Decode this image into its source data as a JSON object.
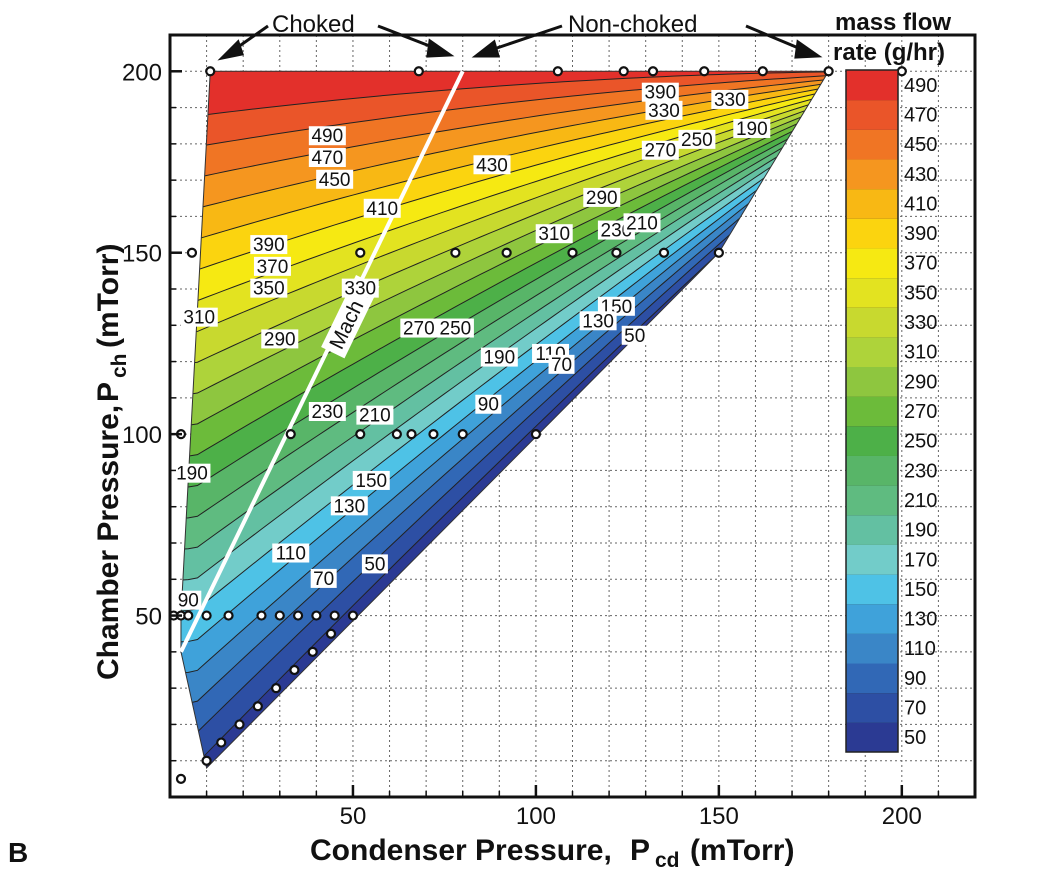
{
  "panel_label": "B",
  "chart_data": {
    "type": "contour",
    "title": "",
    "xlabel": "Condenser Pressure,",
    "xlabel_symbol": "P",
    "xlabel_sub": "cd",
    "xlabel_unit": "(mTorr)",
    "ylabel": "Chamber Pressure,",
    "ylabel_symbol": "P",
    "ylabel_sub": "ch",
    "ylabel_unit": "(mTorr)",
    "xlim": [
      0,
      220
    ],
    "ylim": [
      0,
      210
    ],
    "x_ticks": [
      50,
      100,
      150,
      200
    ],
    "y_ticks": [
      50,
      100,
      150,
      200
    ],
    "grid": true,
    "colorbar_title_line1": "mass flow",
    "colorbar_title_line2": "rate (g/hr)",
    "colorbar_levels": [
      50,
      70,
      90,
      110,
      130,
      150,
      170,
      190,
      210,
      230,
      250,
      270,
      290,
      310,
      330,
      350,
      370,
      390,
      410,
      430,
      450,
      470,
      490
    ],
    "colorbar_colors": [
      "#2b3a93",
      "#2d4fa4",
      "#3168b6",
      "#3a86c7",
      "#3fa2da",
      "#4ec2e6",
      "#72ccc9",
      "#63c0a2",
      "#5fbb80",
      "#58b568",
      "#4db048",
      "#6cbb3a",
      "#8ec63f",
      "#aed33a",
      "#c8d92f",
      "#e3e320",
      "#f6e912",
      "#fbd40f",
      "#f8b814",
      "#f5961f",
      "#f07524",
      "#ea5529",
      "#e3302b"
    ],
    "domain_boundary": [
      [
        11,
        200
      ],
      [
        180,
        200
      ],
      [
        150,
        150
      ],
      [
        10,
        8
      ],
      [
        3,
        40
      ],
      [
        3,
        50
      ],
      [
        11,
        200
      ]
    ],
    "mach1_line": {
      "label": "Mach 1",
      "x": [
        3,
        80
      ],
      "y": [
        40,
        200
      ]
    },
    "annotations": {
      "choked": "Choked",
      "non_choked": "Non-choked"
    },
    "data_points": [
      [
        11,
        200
      ],
      [
        68,
        200
      ],
      [
        106,
        200
      ],
      [
        124,
        200
      ],
      [
        132,
        200
      ],
      [
        146,
        200
      ],
      [
        162,
        200
      ],
      [
        180,
        200
      ],
      [
        200,
        200
      ],
      [
        6,
        150
      ],
      [
        52,
        150
      ],
      [
        78,
        150
      ],
      [
        92,
        150
      ],
      [
        110,
        150
      ],
      [
        122,
        150
      ],
      [
        135,
        150
      ],
      [
        150,
        150
      ],
      [
        3,
        100
      ],
      [
        33,
        100
      ],
      [
        52,
        100
      ],
      [
        62,
        100
      ],
      [
        66,
        100
      ],
      [
        72,
        100
      ],
      [
        80,
        100
      ],
      [
        100,
        100
      ],
      [
        1,
        50
      ],
      [
        3,
        50
      ],
      [
        5,
        50
      ],
      [
        10,
        50
      ],
      [
        16,
        50
      ],
      [
        25,
        50
      ],
      [
        30,
        50
      ],
      [
        35,
        50
      ],
      [
        40,
        50
      ],
      [
        45,
        50
      ],
      [
        50,
        50
      ],
      [
        44,
        45
      ],
      [
        39,
        40
      ],
      [
        34,
        35
      ],
      [
        29,
        30
      ],
      [
        24,
        25
      ],
      [
        19,
        20
      ],
      [
        14,
        15
      ],
      [
        10,
        10
      ],
      [
        3,
        5
      ]
    ],
    "contour_labels": [
      {
        "text": "490",
        "x": 43,
        "y": 181
      },
      {
        "text": "470",
        "x": 43,
        "y": 175
      },
      {
        "text": "450",
        "x": 45,
        "y": 169
      },
      {
        "text": "430",
        "x": 88,
        "y": 173
      },
      {
        "text": "410",
        "x": 58,
        "y": 161
      },
      {
        "text": "390",
        "x": 27,
        "y": 151
      },
      {
        "text": "370",
        "x": 28,
        "y": 145
      },
      {
        "text": "350",
        "x": 27,
        "y": 139
      },
      {
        "text": "330",
        "x": 52,
        "y": 139
      },
      {
        "text": "310",
        "x": 8,
        "y": 131
      },
      {
        "text": "290",
        "x": 30,
        "y": 125
      },
      {
        "text": "270",
        "x": 68,
        "y": 128
      },
      {
        "text": "250",
        "x": 78,
        "y": 128
      },
      {
        "text": "230",
        "x": 43,
        "y": 105
      },
      {
        "text": "210",
        "x": 56,
        "y": 104
      },
      {
        "text": "190",
        "x": 6,
        "y": 88
      },
      {
        "text": "150",
        "x": 55,
        "y": 86
      },
      {
        "text": "130",
        "x": 49,
        "y": 79
      },
      {
        "text": "110",
        "x": 33,
        "y": 66
      },
      {
        "text": "70",
        "x": 42,
        "y": 59
      },
      {
        "text": "50",
        "x": 56,
        "y": 63
      },
      {
        "text": "90",
        "x": 5,
        "y": 53
      },
      {
        "text": "190",
        "x": 90,
        "y": 120
      },
      {
        "text": "110",
        "x": 104,
        "y": 121
      },
      {
        "text": "70",
        "x": 107,
        "y": 118
      },
      {
        "text": "90",
        "x": 87,
        "y": 107
      },
      {
        "text": "310",
        "x": 105,
        "y": 154
      },
      {
        "text": "290",
        "x": 118,
        "y": 164
      },
      {
        "text": "230",
        "x": 122,
        "y": 155
      },
      {
        "text": "210",
        "x": 129,
        "y": 157
      },
      {
        "text": "270",
        "x": 134,
        "y": 177
      },
      {
        "text": "250",
        "x": 144,
        "y": 180
      },
      {
        "text": "190",
        "x": 159,
        "y": 183
      },
      {
        "text": "390",
        "x": 134,
        "y": 193
      },
      {
        "text": "330",
        "x": 135,
        "y": 188
      },
      {
        "text": "330",
        "x": 153,
        "y": 191
      },
      {
        "text": "150",
        "x": 122,
        "y": 134
      },
      {
        "text": "130",
        "x": 117,
        "y": 130
      },
      {
        "text": "50",
        "x": 127,
        "y": 126
      }
    ]
  }
}
